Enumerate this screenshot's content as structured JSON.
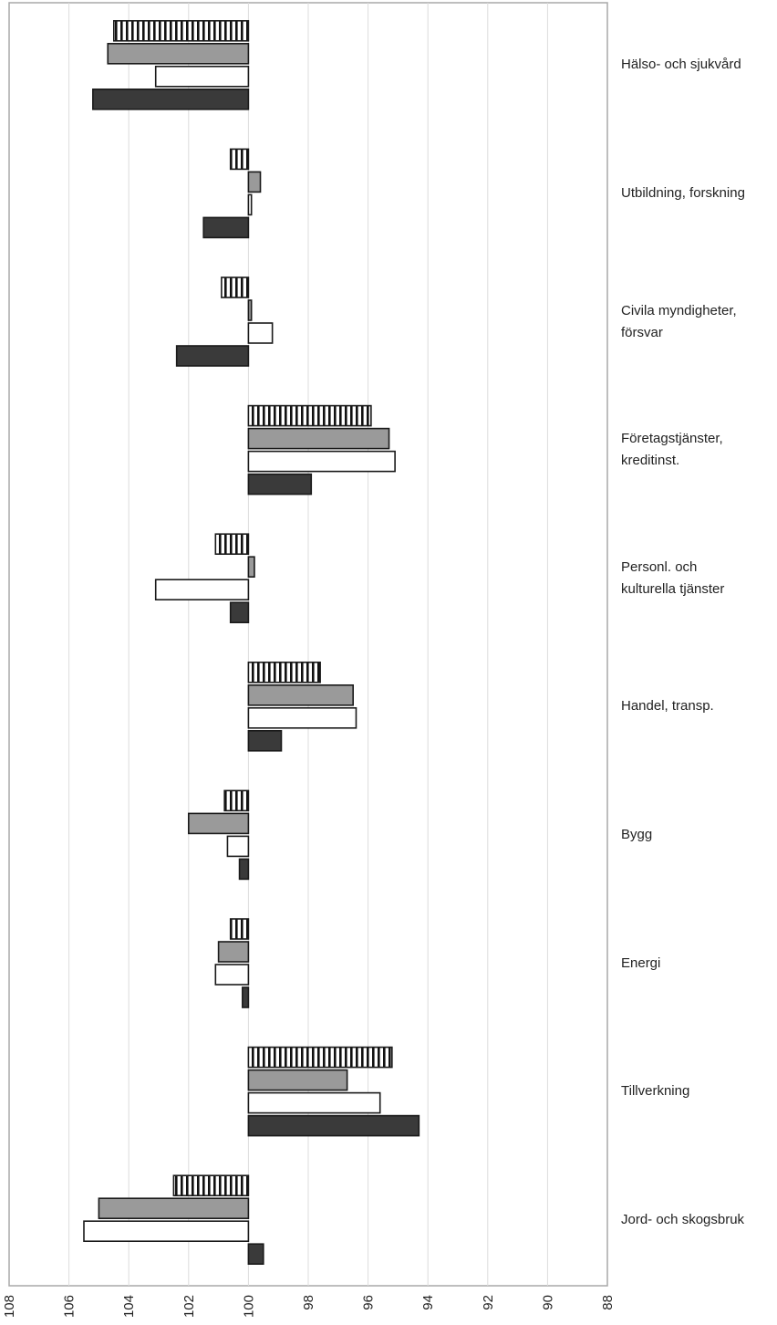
{
  "chart_data": {
    "type": "bar",
    "orientation": "horizontal",
    "x_axis_reversed": true,
    "xlim": [
      108,
      88
    ],
    "xticks": [
      108,
      106,
      104,
      102,
      100,
      98,
      96,
      94,
      92,
      90,
      88
    ],
    "baseline": 100,
    "grid": true,
    "title": "",
    "xlabel": "",
    "ylabel": "",
    "categories": [
      "Hälso- och sjukvård",
      "Utbildning, forskning",
      "Civila myndigheter, försvar",
      "Företagstjänster, kreditinst.",
      "Personl. och kulturella tjänster",
      "Handel, transp.",
      "Bygg",
      "Energi",
      "Tillverkning",
      "Jord- och skogsbruk"
    ],
    "category_label_lines": [
      [
        "Hälso- och sjukvård"
      ],
      [
        "Utbildning, forskning"
      ],
      [
        "Civila myndigheter,",
        "försvar"
      ],
      [
        "Företagstjänster,",
        "kreditinst."
      ],
      [
        "Personl. och",
        "kulturella tjänster"
      ],
      [
        "Handel, transp."
      ],
      [
        "Bygg"
      ],
      [
        "Energi"
      ],
      [
        "Tillverkning"
      ],
      [
        "Jord- och skogsbruk"
      ]
    ],
    "series": [
      {
        "style": "hatched",
        "color": "#ffffff",
        "values": [
          104.5,
          100.6,
          100.9,
          95.9,
          101.1,
          97.6,
          100.8,
          100.6,
          95.2,
          102.5
        ]
      },
      {
        "style": "gray",
        "color": "#9a9a9a",
        "values": [
          104.7,
          99.6,
          99.9,
          95.3,
          99.8,
          96.5,
          102.0,
          101.0,
          96.7,
          105.0
        ]
      },
      {
        "style": "white",
        "color": "#ffffff",
        "values": [
          103.1,
          99.9,
          99.2,
          95.1,
          103.1,
          96.4,
          100.7,
          101.1,
          95.6,
          105.5
        ]
      },
      {
        "style": "dark",
        "color": "#3a3a3a",
        "values": [
          105.2,
          101.5,
          102.4,
          97.9,
          100.6,
          98.9,
          100.3,
          100.2,
          94.3,
          99.5
        ]
      }
    ]
  }
}
